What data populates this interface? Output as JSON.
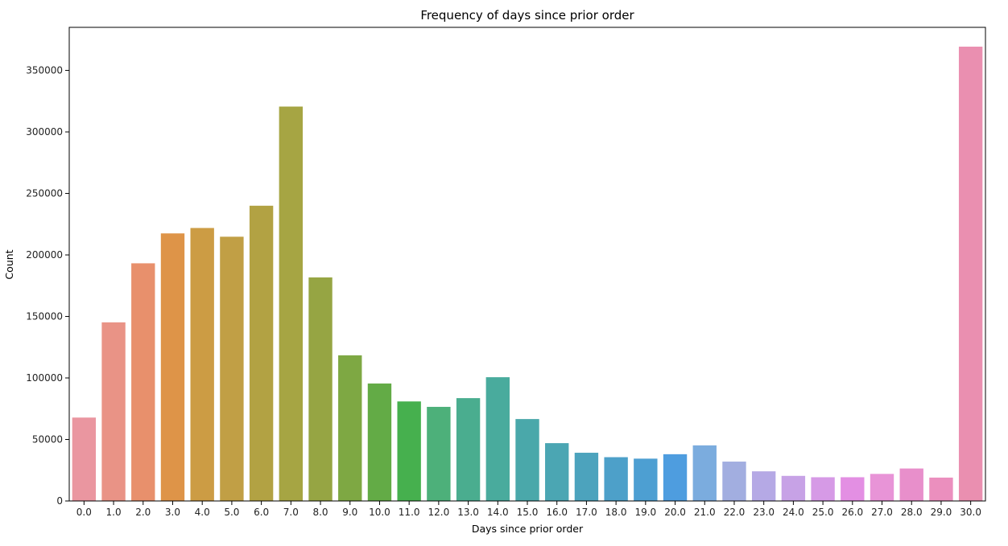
{
  "chart_data": {
    "type": "bar",
    "title": "Frequency of days since prior order",
    "xlabel": "Days since prior order",
    "ylabel": "Count",
    "ylim": [
      0,
      385000
    ],
    "yticks": [
      0,
      50000,
      100000,
      150000,
      200000,
      250000,
      300000,
      350000
    ],
    "grid": false,
    "legend": "none",
    "categories": [
      "0.0",
      "1.0",
      "2.0",
      "3.0",
      "4.0",
      "5.0",
      "6.0",
      "7.0",
      "8.0",
      "9.0",
      "10.0",
      "11.0",
      "12.0",
      "13.0",
      "14.0",
      "15.0",
      "16.0",
      "17.0",
      "18.0",
      "19.0",
      "20.0",
      "21.0",
      "22.0",
      "23.0",
      "24.0",
      "25.0",
      "26.0",
      "27.0",
      "28.0",
      "29.0",
      "30.0"
    ],
    "values": [
      67800,
      145200,
      193200,
      217500,
      221900,
      214800,
      240000,
      320600,
      181700,
      118400,
      95500,
      80900,
      76500,
      83600,
      100600,
      66600,
      47000,
      39200,
      35600,
      34400,
      38000,
      45200,
      32000,
      24100,
      20400,
      19300,
      19300,
      22000,
      26400,
      19000,
      369300
    ],
    "colors": [
      "#ea96a0",
      "#e99386",
      "#e8906c",
      "#de9448",
      "#cc9c44",
      "#c19f45",
      "#b2a243",
      "#a6a543",
      "#96a543",
      "#7ea843",
      "#63ab46",
      "#46b04e",
      "#4db07a",
      "#4aad8f",
      "#49ab9d",
      "#4aa8aa",
      "#4ba6b3",
      "#4ca3bd",
      "#4da0c9",
      "#4d9fd2",
      "#4e9ddf",
      "#7bacde",
      "#a2aee0",
      "#b5a9e5",
      "#c7a2e6",
      "#d69ae6",
      "#e38fe3",
      "#e894d7",
      "#e88fcb",
      "#eb8fbe",
      "#ea8fb0"
    ]
  }
}
